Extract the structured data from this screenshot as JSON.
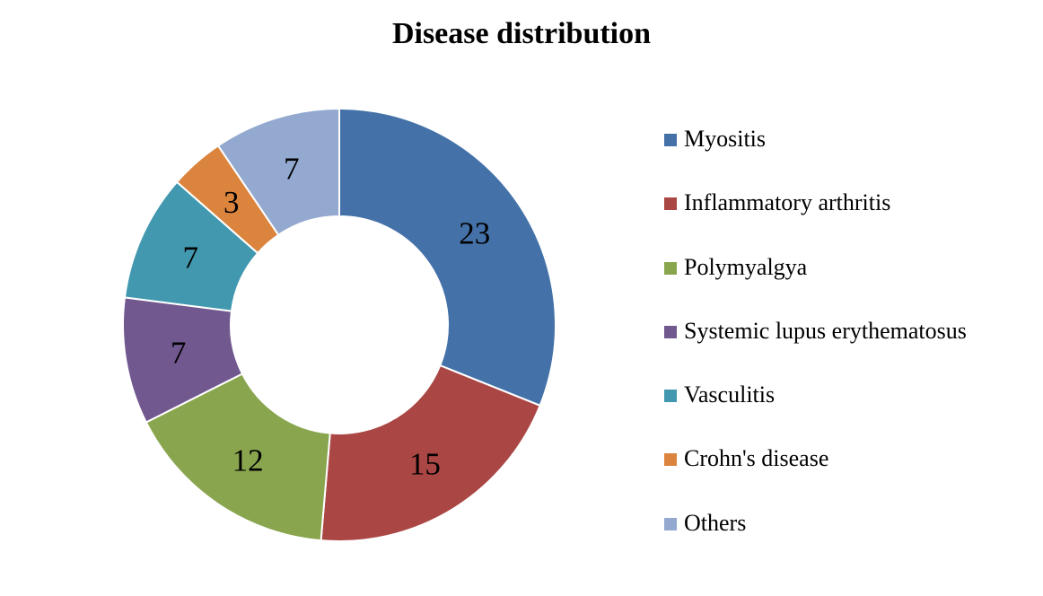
{
  "chart_data": {
    "type": "pie",
    "subtype": "donut",
    "title": "Disease distribution",
    "categories": [
      "Myositis",
      "Inflammatory arthritis",
      "Polymyalgya",
      "Systemic lupus erythematosus",
      "Vasculitis",
      "Crohn's disease",
      "Others"
    ],
    "values": [
      23,
      15,
      12,
      7,
      7,
      3,
      7
    ],
    "colors": [
      "#4472A8",
      "#AA4643",
      "#89A54E",
      "#71588F",
      "#4198AF",
      "#DB843D",
      "#93A9CF"
    ],
    "data_labels": [
      "23",
      "15",
      "12",
      "7",
      "7",
      "3",
      "7"
    ],
    "legend_position": "right",
    "start_angle": "top (12 o'clock), clockwise"
  }
}
